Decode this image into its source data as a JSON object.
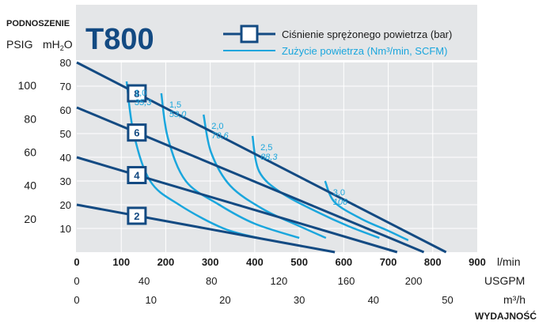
{
  "header": {
    "model": "T800",
    "legend_pressure": "Ciśnienie sprężonego powietrza (bar)",
    "legend_air": "Zużycie powietrza (Nm³/min, SCFM)"
  },
  "axes": {
    "y_title": "PODNOSZENIE",
    "y_psig_label": "PSIG",
    "y_mh2o_label": "mH",
    "y_mh2o_sub": "2",
    "y_mh2o_tail": "O",
    "x_title": "WYDAJNOŚĆ",
    "x_unit_lmin": "l/min",
    "x_unit_usgpm": "USGPM",
    "x_unit_m3h": "m³/h"
  },
  "colors": {
    "pressure": "#134a82",
    "air": "#1aa6dd",
    "grid": "#ffffff",
    "plot_bg": "#e4e6e8",
    "header_bg": "#e4e6e8",
    "label_air": "#1aa6dd",
    "text": "#1a1a1a"
  },
  "chart_data": {
    "type": "line",
    "x_unit": "l/min",
    "y_unit": "mH2O",
    "xlim": [
      0,
      900
    ],
    "ylim": [
      0,
      80
    ],
    "x_ticks_lmin": [
      "0",
      "100",
      "200",
      "300",
      "400",
      "500",
      "600",
      "700",
      "800",
      "900"
    ],
    "x_ticks_usgpm": [
      "0",
      "40",
      "80",
      "120",
      "160",
      "200"
    ],
    "x_ticks_m3h": [
      "0",
      "10",
      "20",
      "30",
      "40",
      "50"
    ],
    "y_ticks_mh2o": [
      "10",
      "20",
      "30",
      "40",
      "50",
      "60",
      "70",
      "80"
    ],
    "y_ticks_psig": [
      "20",
      "40",
      "60",
      "80",
      "100"
    ],
    "pressure_series": [
      {
        "name": "8",
        "points": [
          [
            0,
            80
          ],
          [
            830,
            0
          ]
        ]
      },
      {
        "name": "6",
        "points": [
          [
            0,
            61
          ],
          [
            780,
            0
          ]
        ]
      },
      {
        "name": "4",
        "points": [
          [
            0,
            40
          ],
          [
            720,
            0
          ]
        ]
      },
      {
        "name": "2",
        "points": [
          [
            0,
            20
          ],
          [
            580,
            0
          ]
        ]
      }
    ],
    "air_series": [
      {
        "label_nm3": "1,0",
        "label_scfm": "35,3",
        "points": [
          [
            112,
            72
          ],
          [
            128,
            50
          ],
          [
            165,
            30
          ],
          [
            230,
            20
          ],
          [
            330,
            10
          ],
          [
            420,
            5.5
          ]
        ]
      },
      {
        "label_nm3": "1,5",
        "label_scfm": "53,0",
        "points": [
          [
            190,
            67
          ],
          [
            205,
            48
          ],
          [
            245,
            30
          ],
          [
            320,
            20
          ],
          [
            400,
            12
          ],
          [
            500,
            6
          ]
        ]
      },
      {
        "label_nm3": "2,0",
        "label_scfm": "70,6",
        "points": [
          [
            285,
            58
          ],
          [
            302,
            42
          ],
          [
            345,
            28
          ],
          [
            420,
            18
          ],
          [
            500,
            11
          ],
          [
            560,
            6
          ]
        ]
      },
      {
        "label_nm3": "2,5",
        "label_scfm": "88,3",
        "points": [
          [
            395,
            49
          ],
          [
            410,
            34
          ],
          [
            460,
            25
          ],
          [
            540,
            17
          ],
          [
            610,
            11
          ],
          [
            680,
            6
          ]
        ]
      },
      {
        "label_nm3": "3,0",
        "label_scfm": "106",
        "points": [
          [
            558,
            30
          ],
          [
            580,
            21
          ],
          [
            640,
            14
          ],
          [
            700,
            9
          ],
          [
            745,
            5
          ]
        ]
      }
    ]
  }
}
